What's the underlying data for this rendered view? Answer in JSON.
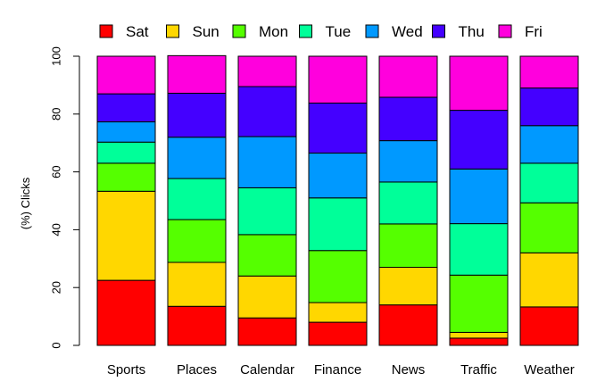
{
  "chart_data": {
    "type": "bar",
    "stacked": true,
    "title": "",
    "xlabel": "",
    "ylabel": "(%) Clicks",
    "ylim": [
      0,
      100
    ],
    "yticks": [
      0,
      20,
      40,
      60,
      80,
      100
    ],
    "grid": false,
    "legend_position": "top",
    "categories": [
      "Sports",
      "Places",
      "Calendar",
      "Finance",
      "News",
      "Traffic",
      "Weather"
    ],
    "series": [
      {
        "name": "Sat",
        "color": "#FF0000",
        "values": [
          22.5,
          13.5,
          9.5,
          8.0,
          14.0,
          2.5,
          13.3
        ]
      },
      {
        "name": "Sun",
        "color": "#FFD700",
        "values": [
          30.8,
          15.2,
          14.5,
          6.8,
          13.0,
          2.0,
          18.7
        ]
      },
      {
        "name": "Mon",
        "color": "#55FF00",
        "values": [
          9.7,
          14.8,
          14.3,
          18.0,
          15.0,
          19.8,
          17.3
        ]
      },
      {
        "name": "Tue",
        "color": "#00FF99",
        "values": [
          7.3,
          14.2,
          16.2,
          18.2,
          14.5,
          17.8,
          13.7
        ]
      },
      {
        "name": "Wed",
        "color": "#0099FF",
        "values": [
          7.0,
          14.3,
          17.7,
          15.5,
          14.3,
          18.9,
          13.0
        ]
      },
      {
        "name": "Thu",
        "color": "#4400FF",
        "values": [
          9.7,
          15.2,
          17.3,
          17.3,
          15.0,
          20.3,
          13.0
        ]
      },
      {
        "name": "Fri",
        "color": "#FF00DD",
        "values": [
          13.0,
          13.0,
          10.5,
          16.2,
          14.2,
          18.7,
          11.0
        ]
      }
    ]
  }
}
